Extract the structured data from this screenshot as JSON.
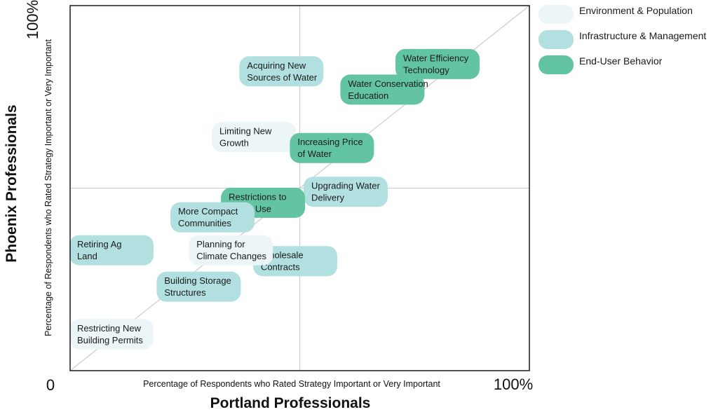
{
  "chart_data": {
    "type": "scatter",
    "x_label": "Percentage of Respondents who Rated Strategy Important or Very Important",
    "y_label": "Percentage of Respondents who Rated Strategy Important or Very Important",
    "x_title": "Portland Professionals",
    "y_title": "Phoenix Professionals",
    "origin_label": "0",
    "x_max_label": "100%",
    "y_max_label": "100%",
    "x_range": [
      0,
      100
    ],
    "y_range": [
      0,
      100
    ],
    "grid": "quadrant lines at 50% plus diagonal",
    "legend_position": "top-right",
    "categories": [
      {
        "name": "Environment & Population",
        "color": "#ecf6f8"
      },
      {
        "name": "Infrastructure & Management",
        "color": "#b2e0e0"
      },
      {
        "name": "End-User Behavior",
        "color": "#63c4a4"
      }
    ],
    "points": [
      {
        "label": [
          "Acquiring New",
          "Sources of Water"
        ],
        "category": 1,
        "x": 46,
        "y": 82
      },
      {
        "label": [
          "Water Efficiency",
          "Technology"
        ],
        "category": 2,
        "x": 80,
        "y": 84
      },
      {
        "label": [
          "Water Conservation",
          "Education"
        ],
        "category": 2,
        "x": 68,
        "y": 77
      },
      {
        "label": [
          "Limiting New",
          "Growth"
        ],
        "category": 0,
        "x": 40,
        "y": 64
      },
      {
        "label": [
          "Increasing Price",
          "of Water"
        ],
        "category": 2,
        "x": 57,
        "y": 61
      },
      {
        "label": [
          "Upgrading Water",
          "Delivery"
        ],
        "category": 1,
        "x": 60,
        "y": 49
      },
      {
        "label": [
          "Restrictions to",
          "Water Use"
        ],
        "category": 2,
        "x": 42,
        "y": 46
      },
      {
        "label": [
          "More Compact",
          "Communities"
        ],
        "category": 1,
        "x": 31,
        "y": 42
      },
      {
        "label": [
          "Retiring Ag",
          "Land"
        ],
        "category": 1,
        "x": 9,
        "y": 33
      },
      {
        "label": [
          "Wholesale",
          "Contracts"
        ],
        "category": 1,
        "x": 49,
        "y": 30
      },
      {
        "label": [
          "Planning for",
          "Climate Changes"
        ],
        "category": 0,
        "x": 35,
        "y": 33
      },
      {
        "label": [
          "Building Storage",
          "Structures"
        ],
        "category": 1,
        "x": 28,
        "y": 23
      },
      {
        "label": [
          "Restricting New",
          "Building Permits"
        ],
        "category": 0,
        "x": 9,
        "y": 10
      }
    ]
  }
}
